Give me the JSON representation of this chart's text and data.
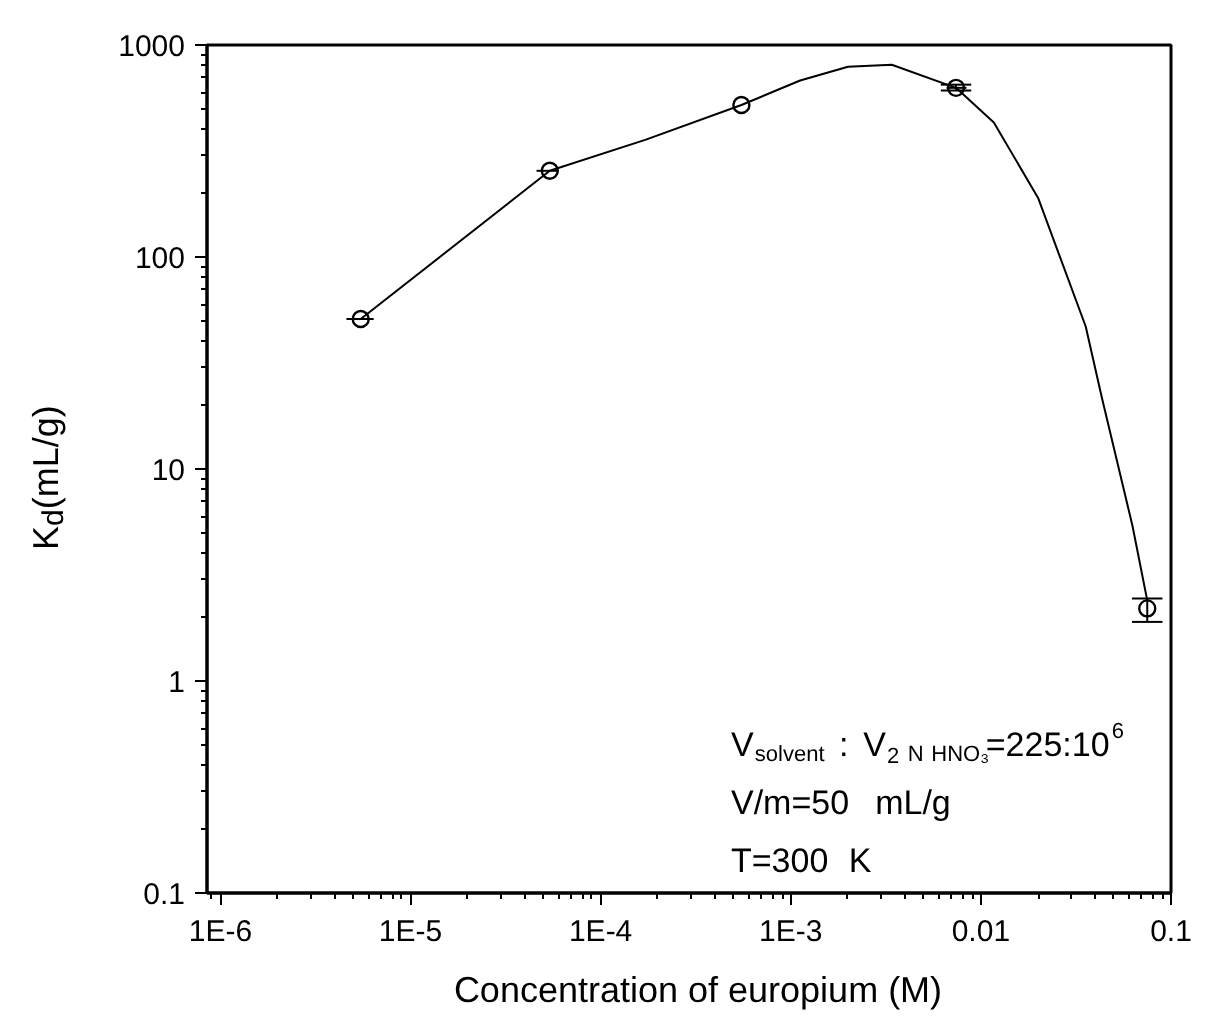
{
  "chart_data": {
    "type": "scatter",
    "xlabel": "Concentration of europium (M)",
    "ylabel": "K$_{d}$(mL/g)",
    "log": "xy",
    "grid": false,
    "xlim": [
      8.5e-07,
      0.1
    ],
    "ylim": [
      0.1,
      1000
    ],
    "xticks": [
      {
        "value": 1e-06,
        "label": "1E-6"
      },
      {
        "value": 1e-05,
        "label": "1E-5"
      },
      {
        "value": 0.0001,
        "label": "1E-4"
      },
      {
        "value": 0.001,
        "label": "1E-3"
      },
      0.01,
      0.1
    ],
    "yticks": [
      0.1,
      1,
      10,
      100,
      1000
    ],
    "annotations": [
      "V$_{solvent}$ : V$_{2 N HNO₃}$=225:10$^{6}$",
      "V/m=50 mL/g",
      "T=300 K"
    ],
    "series": [
      {
        "type": "line",
        "color": "#000000",
        "marker": "none",
        "line_style": "solid",
        "x": [
          5.47e-06,
          5.4e-05,
          0.000173,
          0.00055,
          0.00112,
          0.002,
          0.0034,
          0.0074,
          0.0117,
          0.02,
          0.0356,
          0.0433,
          0.0627,
          0.075
        ],
        "values": [
          51,
          255,
          358,
          521,
          680,
          790,
          807,
          628,
          431,
          190,
          47,
          21.7,
          5.4,
          2.4
        ]
      },
      {
        "color": "#000000",
        "marker": "circle",
        "x": [
          5.47e-06,
          5.4e-05,
          0.00055,
          0.0074,
          0.075
        ],
        "values": [
          51,
          255,
          521,
          628,
          2.2
        ],
        "errors": [
          null,
          null,
          null,
          [
            610,
            650
          ],
          [
            1.9,
            2.45
          ]
        ],
        "xerrors": [
          [
            4.6e-06,
            6.4e-06
          ],
          [
            4.6e-05,
            6e-05
          ],
          null,
          [
            0.0066,
            0.0084
          ],
          null
        ]
      }
    ]
  }
}
